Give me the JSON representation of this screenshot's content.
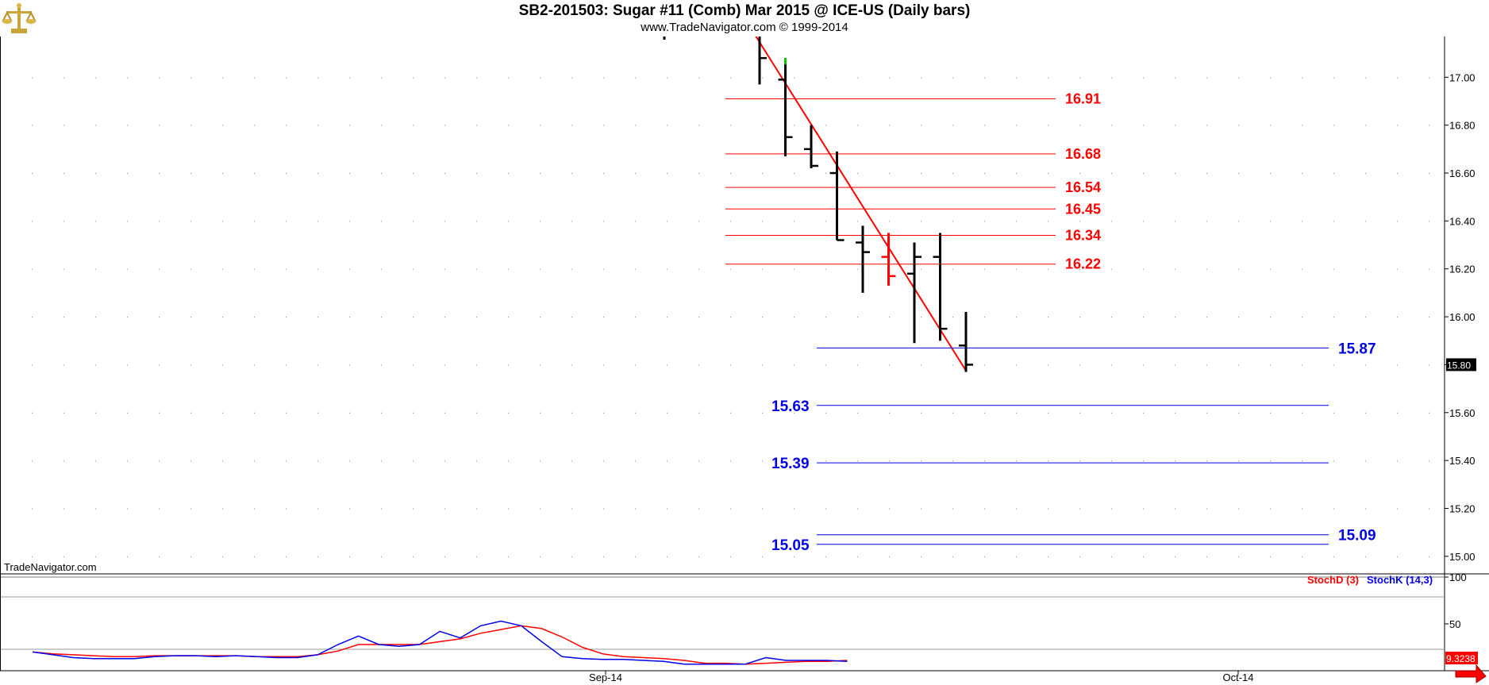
{
  "title": "SB2-201503:  Sugar #11 (Comb) Mar 2015 @ ICE-US  (Daily bars)",
  "subtitle": "www.TradeNavigator.com © 1999-2014",
  "watermark": "TradeNavigator.com",
  "colors": {
    "red": "#ff0000",
    "blue": "#0000e6",
    "green": "#00cc00",
    "bar": "#000000"
  },
  "icons": [
    "scales-logo-icon",
    "scroll-right-arrow-icon"
  ],
  "chart_data": {
    "type": "ohlc",
    "price_panel": {
      "ylim": [
        14.93,
        17.17
      ],
      "yticks": [
        "17.00",
        "16.80",
        "16.60",
        "16.40",
        "16.20",
        "16.00",
        "15.80",
        "15.60",
        "15.40",
        "15.20",
        "15.00"
      ],
      "last_price": "15.80",
      "bars": [
        {
          "o": 17.18,
          "h": 17.2,
          "l": 16.97,
          "c": 17.08,
          "color": "#000000"
        },
        {
          "o": 16.99,
          "h": 17.08,
          "l": 16.67,
          "c": 16.75,
          "color": "#000000",
          "high_tick_color": "#00cc00"
        },
        {
          "o": 16.7,
          "h": 16.8,
          "l": 16.62,
          "c": 16.63,
          "color": "#000000"
        },
        {
          "o": 16.6,
          "h": 16.69,
          "l": 16.32,
          "c": 16.32,
          "color": "#000000"
        },
        {
          "o": 16.31,
          "h": 16.38,
          "l": 16.1,
          "c": 16.27,
          "color": "#000000"
        },
        {
          "o": 16.25,
          "h": 16.35,
          "l": 16.13,
          "c": 16.17,
          "color": "#ff0000"
        },
        {
          "o": 16.18,
          "h": 16.31,
          "l": 15.89,
          "c": 16.25,
          "color": "#000000"
        },
        {
          "o": 16.25,
          "h": 16.35,
          "l": 15.9,
          "c": 15.95,
          "color": "#000000"
        },
        {
          "o": 15.88,
          "h": 16.02,
          "l": 15.77,
          "c": 15.8,
          "color": "#000000"
        }
      ],
      "trendline": {
        "start": 17.17,
        "end": 15.77,
        "color": "#ff0000"
      },
      "red_levels": [
        "16.91",
        "16.68",
        "16.54",
        "16.45",
        "16.34",
        "16.22"
      ],
      "blue_levels": [
        {
          "value": "15.87",
          "label_side": "right"
        },
        {
          "value": "15.63",
          "label_side": "left"
        },
        {
          "value": "15.39",
          "label_side": "left"
        },
        {
          "value": "15.09",
          "label_side": "right"
        },
        {
          "value": "15.05",
          "label_side": "left"
        }
      ]
    },
    "stoch_panel": {
      "legend": [
        {
          "name": "StochD (3)",
          "color": "#ff0000"
        },
        {
          "name": "StochK (14,3)",
          "color": "#0000e6"
        }
      ],
      "yticks": [
        "100",
        "50"
      ],
      "last_value": "9.3238",
      "ylim": [
        0,
        100
      ],
      "stochD": [
        20,
        18,
        17,
        16,
        15,
        15,
        16,
        16,
        16,
        16,
        16,
        15,
        15,
        15,
        17,
        21,
        28,
        28,
        28,
        28,
        31,
        34,
        40,
        44,
        48,
        45,
        36,
        25,
        18,
        15,
        14,
        13,
        11,
        8,
        8,
        7,
        8,
        9,
        10,
        10,
        11
      ],
      "stochK": [
        20,
        17,
        14,
        13,
        13,
        13,
        15,
        16,
        16,
        15,
        16,
        15,
        14,
        14,
        17,
        28,
        37,
        28,
        26,
        28,
        42,
        35,
        48,
        53,
        48,
        31,
        15,
        13,
        12,
        12,
        11,
        10,
        7,
        7,
        7,
        7,
        14,
        11,
        11,
        11,
        10
      ]
    },
    "xaxis": {
      "labels": [
        "Sep-14",
        "Oct-14"
      ]
    }
  }
}
